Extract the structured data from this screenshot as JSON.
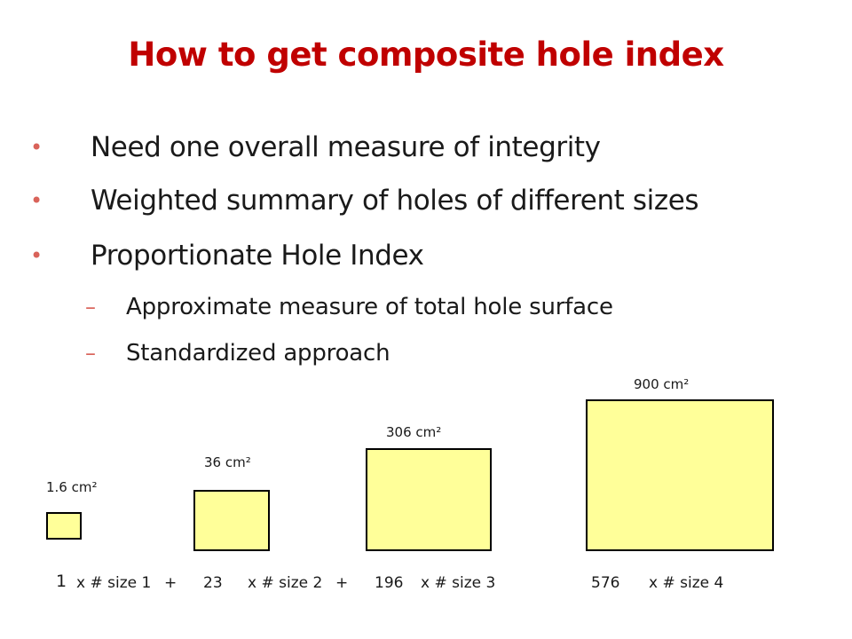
{
  "title": "How to get composite hole index",
  "bullets": [
    "Need one overall measure of integrity",
    "Weighted summary of holes of different sizes",
    "Proportionate Hole Index"
  ],
  "bullet_glyph": "•",
  "sub_bullets": [
    "Approximate measure of total hole surface",
    "Standardized approach"
  ],
  "sub_bullet_glyph": "–",
  "holes": [
    {
      "area_label": "1.6 cm²",
      "weight": "1",
      "term": "x # size 1",
      "operator": "+"
    },
    {
      "area_label": "36 cm²",
      "weight": "23",
      "term": "x # size 2",
      "operator": "+"
    },
    {
      "area_label": "306 cm²",
      "weight": "196",
      "term": "x # size 3",
      "operator": ""
    },
    {
      "area_label": "900 cm²",
      "weight": "576",
      "term": "x # size 4",
      "operator": ""
    }
  ],
  "colors": {
    "title": "#c00000",
    "bullet_marker": "#d9635a",
    "square_fill": "#ffff99",
    "square_border": "#000000"
  }
}
